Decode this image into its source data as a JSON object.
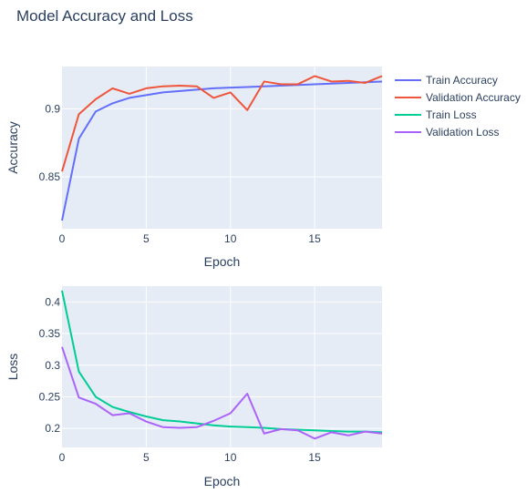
{
  "title": "Model Accuracy and Loss",
  "chart_data": [
    {
      "type": "line",
      "xlabel": "Epoch",
      "ylabel": "Accuracy",
      "xlim": [
        0,
        19
      ],
      "ylim": [
        0.812,
        0.931
      ],
      "xticks": [
        0,
        5,
        10,
        15
      ],
      "yticks": [
        0.85,
        0.9
      ],
      "ytick_labels": [
        "0.85",
        "0.9"
      ],
      "grid": true,
      "series": [
        {
          "name": "Train Accuracy",
          "color": "#636efa",
          "x": [
            0,
            1,
            2,
            3,
            4,
            5,
            6,
            7,
            8,
            9,
            10,
            11,
            12,
            13,
            14,
            15,
            16,
            17,
            18,
            19
          ],
          "values": [
            0.818,
            0.878,
            0.898,
            0.904,
            0.908,
            0.91,
            0.912,
            0.913,
            0.914,
            0.915,
            0.9155,
            0.916,
            0.9165,
            0.917,
            0.9175,
            0.918,
            0.9185,
            0.919,
            0.9195,
            0.92
          ]
        },
        {
          "name": "Validation Accuracy",
          "color": "#ef553b",
          "x": [
            0,
            1,
            2,
            3,
            4,
            5,
            6,
            7,
            8,
            9,
            10,
            11,
            12,
            13,
            14,
            15,
            16,
            17,
            18,
            19
          ],
          "values": [
            0.854,
            0.896,
            0.907,
            0.915,
            0.911,
            0.915,
            0.9165,
            0.917,
            0.9165,
            0.908,
            0.912,
            0.899,
            0.92,
            0.918,
            0.918,
            0.924,
            0.92,
            0.9205,
            0.919,
            0.924
          ]
        }
      ]
    },
    {
      "type": "line",
      "xlabel": "Epoch",
      "ylabel": "Loss",
      "xlim": [
        0,
        19
      ],
      "ylim": [
        0.17,
        0.425
      ],
      "xticks": [
        0,
        5,
        10,
        15
      ],
      "yticks": [
        0.2,
        0.25,
        0.3,
        0.35,
        0.4
      ],
      "ytick_labels": [
        "0.2",
        "0.25",
        "0.3",
        "0.35",
        "0.4"
      ],
      "grid": true,
      "series": [
        {
          "name": "Train Loss",
          "color": "#00cc96",
          "x": [
            0,
            1,
            2,
            3,
            4,
            5,
            6,
            7,
            8,
            9,
            10,
            11,
            12,
            13,
            14,
            15,
            16,
            17,
            18,
            19
          ],
          "values": [
            0.418,
            0.29,
            0.25,
            0.234,
            0.226,
            0.219,
            0.213,
            0.211,
            0.208,
            0.205,
            0.203,
            0.202,
            0.201,
            0.199,
            0.198,
            0.197,
            0.196,
            0.195,
            0.195,
            0.194
          ]
        },
        {
          "name": "Validation Loss",
          "color": "#ab63fa",
          "x": [
            0,
            1,
            2,
            3,
            4,
            5,
            6,
            7,
            8,
            9,
            10,
            11,
            12,
            13,
            14,
            15,
            16,
            17,
            18,
            19
          ],
          "values": [
            0.329,
            0.249,
            0.239,
            0.221,
            0.224,
            0.211,
            0.202,
            0.201,
            0.202,
            0.212,
            0.224,
            0.255,
            0.192,
            0.199,
            0.197,
            0.184,
            0.194,
            0.189,
            0.195,
            0.192
          ]
        }
      ]
    }
  ],
  "legend": {
    "placement": "right",
    "items": [
      {
        "label": "Train Accuracy",
        "color": "#636efa"
      },
      {
        "label": "Validation Accuracy",
        "color": "#ef553b"
      },
      {
        "label": "Train Loss",
        "color": "#00cc96"
      },
      {
        "label": "Validation Loss",
        "color": "#ab63fa"
      }
    ]
  }
}
